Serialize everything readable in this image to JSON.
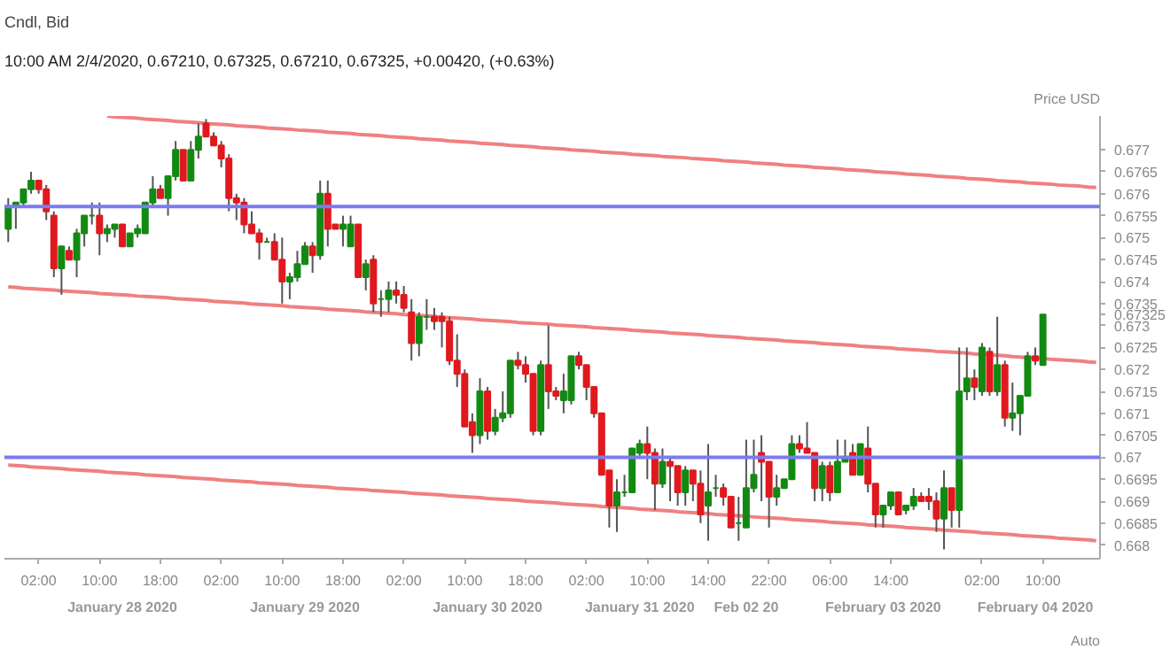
{
  "chart_data": {
    "type": "candlestick",
    "title": "Cndl, Bid",
    "subtitle": "10:00 AM 2/4/2020, 0.67210, 0.67325, 0.67210, 0.67325, +0.00420, (+0.63%)",
    "ylabel": "Price USD",
    "annotations": [
      "Auto",
      "January 28 2020",
      "January 29 2020",
      "January 30 2020",
      "January 31 2020",
      "Feb 02 20",
      "February 03 2020",
      "February 04 2020"
    ],
    "ylim": [
      0.66769,
      0.67777
    ],
    "categories": [
      null,
      null,
      null,
      null,
      "02:00",
      null,
      null,
      null,
      null,
      null,
      null,
      null,
      "10:00",
      null,
      null,
      null,
      null,
      null,
      null,
      null,
      "18:00",
      null,
      null,
      null,
      null,
      null,
      null,
      null,
      "02:00",
      null,
      null,
      null,
      null,
      null,
      null,
      null,
      "10:00",
      null,
      null,
      null,
      null,
      null,
      null,
      null,
      "18:00",
      null,
      null,
      null,
      null,
      null,
      null,
      null,
      "02:00",
      null,
      null,
      null,
      null,
      null,
      null,
      null,
      "10:00",
      null,
      null,
      null,
      null,
      null,
      null,
      null,
      "18:00",
      null,
      null,
      null,
      null,
      null,
      null,
      null,
      "02:00",
      null,
      null,
      null,
      null,
      null,
      null,
      null,
      "10:00",
      null,
      null,
      null,
      null,
      null,
      null,
      null,
      "14:00",
      null,
      null,
      null,
      null,
      null,
      null,
      null,
      "22:00",
      null,
      null,
      null,
      null,
      null,
      null,
      null,
      "06:00",
      null,
      null,
      null,
      null,
      null,
      null,
      null,
      "14:00",
      null,
      null,
      null,
      null,
      null,
      null,
      null,
      null,
      null,
      null,
      null,
      "02:00",
      null,
      null,
      null,
      null,
      null,
      null,
      null,
      "10:00",
      null,
      null,
      null,
      null,
      null,
      null,
      null
    ],
    "yticks": [
      0.668,
      0.6685,
      0.669,
      0.6695,
      0.67,
      0.6705,
      0.671,
      0.6715,
      0.672,
      0.6725,
      0.673,
      {
        "value": 0.67325,
        "label": "0.67325"
      },
      0.6735,
      0.674,
      0.6745,
      0.675,
      0.6755,
      0.676,
      0.6765,
      0.677
    ],
    "ref_lines": [
      {
        "axis": "y",
        "value": 0.67571,
        "color": "#7b7bef"
      },
      {
        "axis": "y",
        "value": 0.67,
        "color": "#7b7bef"
      }
    ],
    "series": [
      {
        "type": "line",
        "color": "#f08080",
        "values": [
          null,
          null,
          null,
          null,
          null,
          null,
          null,
          null,
          null,
          null,
          null,
          null,
          null,
          0.67777,
          0.67775,
          0.67774,
          0.67773,
          0.67772,
          0.6777,
          0.67769,
          0.67768,
          0.67767,
          0.67765,
          0.67764,
          0.67763,
          0.67762,
          0.6776,
          0.67759,
          0.67758,
          0.67757,
          0.67755,
          0.67754,
          0.67753,
          0.67752,
          0.6775,
          0.67749,
          0.67748,
          0.67747,
          0.67745,
          0.67744,
          0.67743,
          0.67742,
          0.6774,
          0.67739,
          0.67738,
          0.67737,
          0.67735,
          0.67734,
          0.67733,
          0.67732,
          0.6773,
          0.67729,
          0.67728,
          0.67727,
          0.67725,
          0.67724,
          0.67723,
          0.67722,
          0.6772,
          0.67719,
          0.67718,
          0.67717,
          0.67715,
          0.67714,
          0.67713,
          0.67712,
          0.6771,
          0.67709,
          0.67708,
          0.67707,
          0.67705,
          0.67704,
          0.67703,
          0.67702,
          0.677,
          0.67699,
          0.67698,
          0.67697,
          0.67695,
          0.67694,
          0.67693,
          0.67692,
          0.6769,
          0.67689,
          0.67688,
          0.67687,
          0.67685,
          0.67684,
          0.67683,
          0.67682,
          0.6768,
          0.67679,
          0.67678,
          0.67677,
          0.67675,
          0.67674,
          0.67673,
          0.67672,
          0.6767,
          0.67669,
          0.67668,
          0.67667,
          0.67665,
          0.67664,
          0.67663,
          0.67662,
          0.6766,
          0.67659,
          0.67658,
          0.67657,
          0.67655,
          0.67654,
          0.67653,
          0.67652,
          0.6765,
          0.67649,
          0.67648,
          0.67647,
          0.67645,
          0.67644,
          0.67643,
          0.67642,
          0.6764,
          0.67639,
          0.67638,
          0.67637,
          0.67635,
          0.67634,
          0.67633,
          0.67632,
          0.6763,
          0.67629,
          0.67628,
          0.67627,
          0.67625,
          0.67624,
          0.67623,
          0.67622,
          0.6762,
          0.67619,
          0.67618,
          0.67617,
          0.67615,
          0.67614
        ]
      },
      {
        "type": "line",
        "color": "#f08080",
        "values": [
          0.67388,
          0.67387,
          0.67385,
          0.67384,
          0.67383,
          0.67382,
          0.67381,
          0.67379,
          0.67378,
          0.67377,
          0.67376,
          0.67375,
          0.67373,
          0.67372,
          0.67371,
          0.6737,
          0.67369,
          0.67367,
          0.67366,
          0.67365,
          0.67364,
          0.67363,
          0.67361,
          0.6736,
          0.67359,
          0.67358,
          0.67357,
          0.67355,
          0.67354,
          0.67353,
          0.67352,
          0.67351,
          0.67349,
          0.67348,
          0.67347,
          0.67346,
          0.67345,
          0.67343,
          0.67342,
          0.67341,
          0.6734,
          0.67339,
          0.67337,
          0.67336,
          0.67335,
          0.67334,
          0.67333,
          0.67331,
          0.6733,
          0.67329,
          0.67328,
          0.67327,
          0.67325,
          0.67324,
          0.67323,
          0.67322,
          0.67321,
          0.67319,
          0.67318,
          0.67317,
          0.67316,
          0.67315,
          0.67313,
          0.67312,
          0.67311,
          0.6731,
          0.67309,
          0.67307,
          0.67306,
          0.67305,
          0.67304,
          0.67303,
          0.67301,
          0.673,
          0.67299,
          0.67298,
          0.67297,
          0.67295,
          0.67294,
          0.67293,
          0.67292,
          0.67291,
          0.67289,
          0.67288,
          0.67287,
          0.67286,
          0.67285,
          0.67283,
          0.67282,
          0.67281,
          0.6728,
          0.67279,
          0.67277,
          0.67276,
          0.67275,
          0.67274,
          0.67273,
          0.67271,
          0.6727,
          0.67269,
          0.67268,
          0.67267,
          0.67265,
          0.67264,
          0.67263,
          0.67262,
          0.67261,
          0.67259,
          0.67258,
          0.67257,
          0.67256,
          0.67255,
          0.67253,
          0.67252,
          0.67251,
          0.6725,
          0.67249,
          0.67247,
          0.67246,
          0.67245,
          0.67244,
          0.67243,
          0.67241,
          0.6724,
          0.67239,
          0.67238,
          0.67237,
          0.67235,
          0.67234,
          0.67233,
          0.67232,
          0.67231,
          0.67229,
          0.67228,
          0.67227,
          0.67226,
          0.67225,
          0.67223,
          0.67222,
          0.67221,
          0.6722,
          0.67219,
          0.67217,
          0.67216
        ]
      },
      {
        "type": "line",
        "color": "#f08080",
        "values": [
          0.66982,
          0.66981,
          0.6698,
          0.66978,
          0.66977,
          0.66976,
          0.66975,
          0.66974,
          0.66972,
          0.66971,
          0.6697,
          0.66969,
          0.66968,
          0.66966,
          0.66965,
          0.66964,
          0.66963,
          0.66962,
          0.6696,
          0.66959,
          0.66958,
          0.66957,
          0.66956,
          0.66954,
          0.66953,
          0.66952,
          0.66951,
          0.6695,
          0.66948,
          0.66947,
          0.66946,
          0.66945,
          0.66944,
          0.66942,
          0.66941,
          0.6694,
          0.66939,
          0.66938,
          0.66936,
          0.66935,
          0.66934,
          0.66933,
          0.66932,
          0.6693,
          0.66929,
          0.66928,
          0.66927,
          0.66926,
          0.66924,
          0.66923,
          0.66922,
          0.66921,
          0.6692,
          0.66918,
          0.66917,
          0.66916,
          0.66915,
          0.66914,
          0.66912,
          0.66911,
          0.6691,
          0.66909,
          0.66908,
          0.66906,
          0.66905,
          0.66904,
          0.66903,
          0.66902,
          0.669,
          0.66899,
          0.66898,
          0.66897,
          0.66896,
          0.66894,
          0.66893,
          0.66892,
          0.66891,
          0.6689,
          0.66888,
          0.66887,
          0.66886,
          0.66885,
          0.66884,
          0.66882,
          0.66881,
          0.6688,
          0.66879,
          0.66878,
          0.66876,
          0.66875,
          0.66874,
          0.66873,
          0.66872,
          0.6687,
          0.66869,
          0.66868,
          0.66867,
          0.66866,
          0.66864,
          0.66863,
          0.66862,
          0.66861,
          0.6686,
          0.66858,
          0.66857,
          0.66856,
          0.66855,
          0.66854,
          0.66852,
          0.66851,
          0.6685,
          0.66849,
          0.66848,
          0.66846,
          0.66845,
          0.66844,
          0.66843,
          0.66842,
          0.6684,
          0.66839,
          0.66838,
          0.66837,
          0.66836,
          0.66834,
          0.66833,
          0.66832,
          0.66831,
          0.6683,
          0.66828,
          0.66827,
          0.66826,
          0.66825,
          0.66824,
          0.66822,
          0.66821,
          0.6682,
          0.66819,
          0.66818,
          0.66816,
          0.66815,
          0.66814,
          0.66813,
          0.66812,
          0.6681
        ]
      }
    ],
    "ohlc": [
      [
        0.6752,
        0.6759,
        0.6749,
        0.6757
      ],
      [
        0.6757,
        0.6758,
        0.6752,
        0.6758
      ],
      [
        0.6758,
        0.6761,
        0.6757,
        0.6761
      ],
      [
        0.6761,
        0.6765,
        0.676,
        0.6763
      ],
      [
        0.6763,
        0.6763,
        0.676,
        0.6761
      ],
      [
        0.6761,
        0.6762,
        0.6754,
        0.6756
      ],
      [
        0.6755,
        0.6756,
        0.6741,
        0.6743
      ],
      [
        0.6743,
        0.6748,
        0.6737,
        0.6748
      ],
      [
        0.6747,
        0.6748,
        0.6745,
        0.6745
      ],
      [
        0.6745,
        0.6752,
        0.6741,
        0.6751
      ],
      [
        0.6751,
        0.6755,
        0.6748,
        0.6755
      ],
      [
        0.6755,
        0.6758,
        0.6753,
        0.6755
      ],
      [
        0.6755,
        0.6758,
        0.6746,
        0.6751
      ],
      [
        0.6751,
        0.6753,
        0.6749,
        0.6752
      ],
      [
        0.6752,
        0.6753,
        0.675,
        0.6753
      ],
      [
        0.6753,
        0.6753,
        0.6748,
        0.6748
      ],
      [
        0.6748,
        0.6751,
        0.6748,
        0.6751
      ],
      [
        0.6751,
        0.6753,
        0.675,
        0.6752
      ],
      [
        0.6751,
        0.6758,
        0.6751,
        0.6758
      ],
      [
        0.6758,
        0.6764,
        0.6757,
        0.6761
      ],
      [
        0.6761,
        0.6762,
        0.6759,
        0.6759
      ],
      [
        0.6759,
        0.6764,
        0.6755,
        0.6764
      ],
      [
        0.6764,
        0.6772,
        0.6763,
        0.677
      ],
      [
        0.677,
        0.677,
        0.6763,
        0.6763
      ],
      [
        0.6763,
        0.6772,
        0.6763,
        0.677
      ],
      [
        0.677,
        0.6776,
        0.6768,
        0.6773
      ],
      [
        0.6776,
        0.6777,
        0.6773,
        0.6773
      ],
      [
        0.6773,
        0.6774,
        0.6771,
        0.6771
      ],
      [
        0.6771,
        0.6772,
        0.6766,
        0.6768
      ],
      [
        0.6768,
        0.6769,
        0.6756,
        0.6759
      ],
      [
        0.6759,
        0.676,
        0.6754,
        0.6758
      ],
      [
        0.6758,
        0.6759,
        0.6751,
        0.6753
      ],
      [
        0.6753,
        0.6756,
        0.6751,
        0.6751
      ],
      [
        0.6751,
        0.6752,
        0.6745,
        0.6749
      ],
      [
        0.6749,
        0.675,
        0.6749,
        0.6749
      ],
      [
        0.6749,
        0.6751,
        0.6745,
        0.6745
      ],
      [
        0.6745,
        0.675,
        0.6735,
        0.674
      ],
      [
        0.674,
        0.6742,
        0.6736,
        0.6741
      ],
      [
        0.6741,
        0.6747,
        0.674,
        0.6744
      ],
      [
        0.6744,
        0.6749,
        0.6744,
        0.6748
      ],
      [
        0.6748,
        0.6749,
        0.6742,
        0.6746
      ],
      [
        0.6746,
        0.6763,
        0.6745,
        0.676
      ],
      [
        0.676,
        0.6763,
        0.6748,
        0.6752
      ],
      [
        0.6753,
        0.6753,
        0.6752,
        0.6752
      ],
      [
        0.6752,
        0.6755,
        0.6748,
        0.6753
      ],
      [
        0.6748,
        0.6755,
        0.6748,
        0.6753
      ],
      [
        0.6753,
        0.6753,
        0.6741,
        0.6741
      ],
      [
        0.6741,
        0.6745,
        0.6738,
        0.6744
      ],
      [
        0.6745,
        0.6746,
        0.6733,
        0.6735
      ],
      [
        0.6736,
        0.6738,
        0.6732,
        0.6736
      ],
      [
        0.6736,
        0.674,
        0.6733,
        0.6738
      ],
      [
        0.6738,
        0.674,
        0.6735,
        0.6737
      ],
      [
        0.6737,
        0.6739,
        0.6733,
        0.6734
      ],
      [
        0.6733,
        0.6736,
        0.6722,
        0.6726
      ],
      [
        0.6726,
        0.6733,
        0.6723,
        0.6732
      ],
      [
        0.6732,
        0.6736,
        0.6729,
        0.6732
      ],
      [
        0.6732,
        0.6734,
        0.6729,
        0.6731
      ],
      [
        0.6732,
        0.6733,
        0.6725,
        0.6731
      ],
      [
        0.6731,
        0.6732,
        0.6721,
        0.6722
      ],
      [
        0.6722,
        0.6728,
        0.6716,
        0.6719
      ],
      [
        0.6719,
        0.672,
        0.6707,
        0.6707
      ],
      [
        0.6708,
        0.671,
        0.6701,
        0.6705
      ],
      [
        0.6705,
        0.6718,
        0.6703,
        0.6715
      ],
      [
        0.6715,
        0.6716,
        0.6704,
        0.6706
      ],
      [
        0.6706,
        0.6711,
        0.6705,
        0.6709
      ],
      [
        0.6709,
        0.6715,
        0.6708,
        0.671
      ],
      [
        0.671,
        0.6722,
        0.6709,
        0.6722
      ],
      [
        0.6722,
        0.6724,
        0.672,
        0.6721
      ],
      [
        0.6721,
        0.6723,
        0.6717,
        0.6719
      ],
      [
        0.6719,
        0.6719,
        0.6705,
        0.6706
      ],
      [
        0.6706,
        0.6722,
        0.6705,
        0.6721
      ],
      [
        0.6721,
        0.673,
        0.6711,
        0.6715
      ],
      [
        0.6715,
        0.6716,
        0.6713,
        0.6714
      ],
      [
        0.6713,
        0.6719,
        0.671,
        0.6715
      ],
      [
        0.6713,
        0.6723,
        0.6712,
        0.6723
      ],
      [
        0.6723,
        0.6724,
        0.672,
        0.6721
      ],
      [
        0.6721,
        0.6721,
        0.6713,
        0.6716
      ],
      [
        0.6716,
        0.6716,
        0.6709,
        0.671
      ],
      [
        0.671,
        0.671,
        0.6696,
        0.6696
      ],
      [
        0.6697,
        0.6697,
        0.6684,
        0.6689
      ],
      [
        0.6689,
        0.6695,
        0.6683,
        0.6692
      ],
      [
        0.6692,
        0.6696,
        0.6691,
        0.6692
      ],
      [
        0.6692,
        0.6702,
        0.6692,
        0.6702
      ],
      [
        0.6701,
        0.6704,
        0.67,
        0.6703
      ],
      [
        0.6703,
        0.6707,
        0.6695,
        0.6701
      ],
      [
        0.6701,
        0.6702,
        0.6688,
        0.6694
      ],
      [
        0.6694,
        0.6702,
        0.6693,
        0.6699
      ],
      [
        0.6699,
        0.67,
        0.669,
        0.6698
      ],
      [
        0.6698,
        0.6698,
        0.6689,
        0.6692
      ],
      [
        0.6692,
        0.6698,
        0.6689,
        0.6697
      ],
      [
        0.6697,
        0.6697,
        0.669,
        0.6694
      ],
      [
        0.6694,
        0.6697,
        0.6685,
        0.6687
      ],
      [
        0.6689,
        0.6703,
        0.6681,
        0.6692
      ],
      [
        0.6693,
        0.6696,
        0.6691,
        0.6693
      ],
      [
        0.6693,
        0.6694,
        0.6689,
        0.6691
      ],
      [
        0.6691,
        0.6691,
        0.6684,
        0.6684
      ],
      [
        0.6685,
        0.6691,
        0.6681,
        0.6685
      ],
      [
        0.6684,
        0.6704,
        0.6684,
        0.6693
      ],
      [
        0.6693,
        0.6704,
        0.6692,
        0.6696
      ],
      [
        0.6701,
        0.6705,
        0.669,
        0.6699
      ],
      [
        0.6699,
        0.6699,
        0.6684,
        0.6691
      ],
      [
        0.6691,
        0.6696,
        0.6689,
        0.6693
      ],
      [
        0.6693,
        0.6695,
        0.6693,
        0.6695
      ],
      [
        0.6695,
        0.6705,
        0.6695,
        0.6703
      ],
      [
        0.6703,
        0.6705,
        0.6701,
        0.6702
      ],
      [
        0.6702,
        0.6708,
        0.6701,
        0.6701
      ],
      [
        0.6701,
        0.6701,
        0.669,
        0.6693
      ],
      [
        0.6693,
        0.6699,
        0.669,
        0.6698
      ],
      [
        0.6698,
        0.6699,
        0.669,
        0.6692
      ],
      [
        0.6692,
        0.6704,
        0.6692,
        0.6699
      ],
      [
        0.6699,
        0.6704,
        0.6699,
        0.67
      ],
      [
        0.6701,
        0.6703,
        0.6696,
        0.6696
      ],
      [
        0.6696,
        0.6703,
        0.6696,
        0.6703
      ],
      [
        0.6702,
        0.6707,
        0.6692,
        0.6694
      ],
      [
        0.6694,
        0.6694,
        0.6684,
        0.6687
      ],
      [
        0.6687,
        0.6689,
        0.6684,
        0.6689
      ],
      [
        0.6689,
        0.6692,
        0.6688,
        0.6692
      ],
      [
        0.6692,
        0.6692,
        0.6687,
        0.6687
      ],
      [
        0.6688,
        0.6689,
        0.6687,
        0.6689
      ],
      [
        0.6689,
        0.6693,
        0.6688,
        0.6691
      ],
      [
        0.6691,
        0.6692,
        0.669,
        0.669
      ],
      [
        0.6691,
        0.6693,
        0.6688,
        0.669
      ],
      [
        0.669,
        0.6692,
        0.6683,
        0.6686
      ],
      [
        0.6686,
        0.6697,
        0.6679,
        0.6693
      ],
      [
        0.6693,
        0.6693,
        0.6684,
        0.6688
      ],
      [
        0.6688,
        0.6725,
        0.6684,
        0.6715
      ],
      [
        0.6715,
        0.6725,
        0.6713,
        0.6718
      ],
      [
        0.6718,
        0.672,
        0.6713,
        0.6716
      ],
      [
        0.6715,
        0.6726,
        0.6714,
        0.6725
      ],
      [
        0.6724,
        0.6725,
        0.6714,
        0.6715
      ],
      [
        0.6715,
        0.6732,
        0.6714,
        0.6721
      ],
      [
        0.6721,
        0.6722,
        0.6707,
        0.6709
      ],
      [
        0.6709,
        0.6717,
        0.6706,
        0.671
      ],
      [
        0.671,
        0.6714,
        0.6705,
        0.6714
      ],
      [
        0.6714,
        0.6724,
        0.6714,
        0.6723
      ],
      [
        0.6723,
        0.6725,
        0.6721,
        0.6722
      ],
      [
        0.6721,
        0.67325,
        0.6721,
        0.67325
      ],
      null,
      null,
      null,
      null,
      null,
      null,
      null
    ]
  }
}
